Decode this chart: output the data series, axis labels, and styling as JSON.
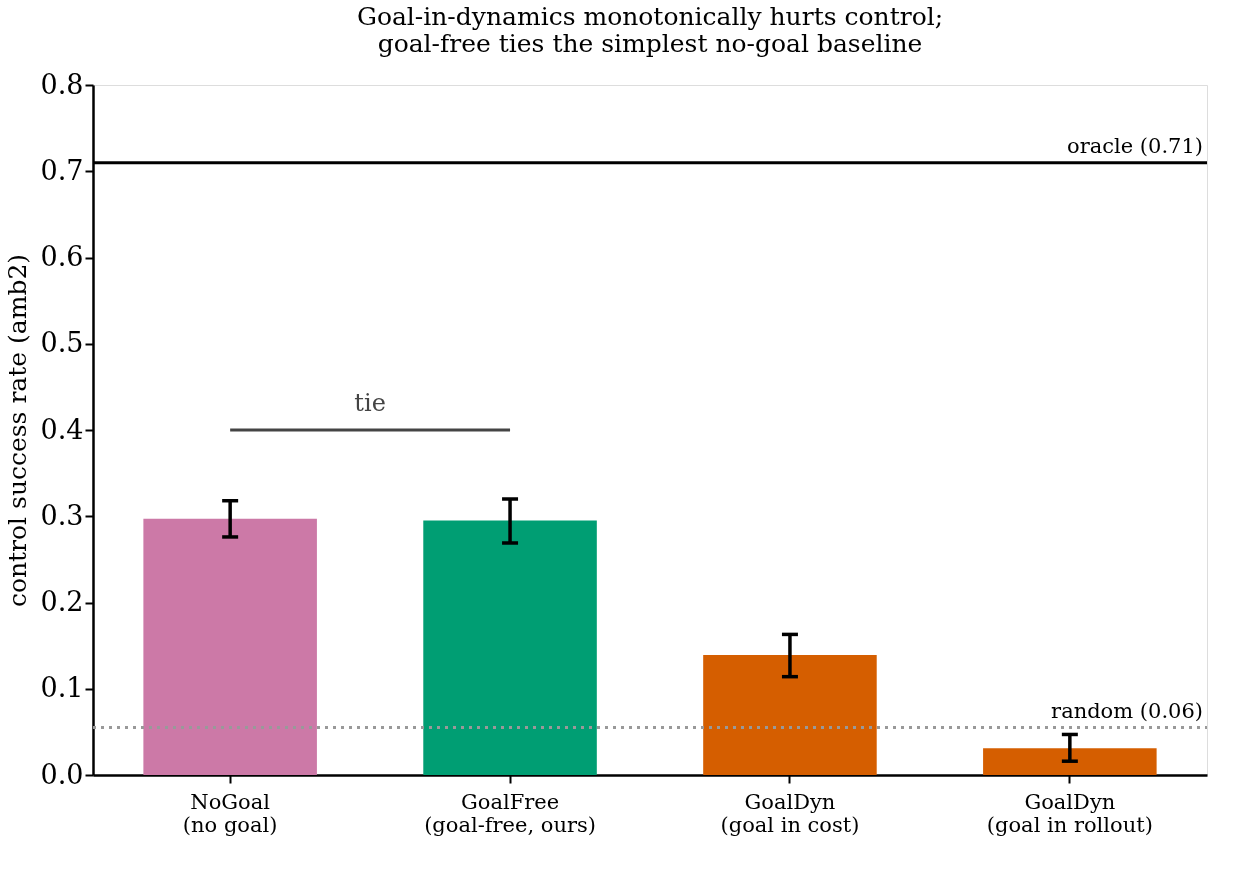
{
  "chart_data": {
    "type": "bar",
    "title": "Goal-in-dynamics monotonically hurts control;\ngoal-free ties the simplest no-goal baseline",
    "ylabel": "control success rate (amb2)",
    "categories": [
      "NoGoal\n(no goal)",
      "GoalFree\n(goal-free, ours)",
      "GoalDyn\n(goal in cost)",
      "GoalDyn\n(goal in rollout)"
    ],
    "values": [
      0.297,
      0.295,
      0.139,
      0.031
    ],
    "colors": [
      "#cc79a7",
      "#009e73",
      "#d55e00",
      "#d55e00"
    ],
    "errors": [
      [
        0.276,
        0.318
      ],
      [
        0.269,
        0.32
      ],
      [
        0.114,
        0.163
      ],
      [
        0.016,
        0.047
      ]
    ],
    "ylim": [
      0,
      0.8
    ],
    "yticks": [
      {
        "value": 0,
        "label": "0.0"
      },
      0.1,
      0.2,
      0.3,
      0.4,
      0.5,
      0.6,
      0.7,
      0.8
    ],
    "ref_lines": [
      {
        "axis": "y",
        "value": 0.71,
        "label": "oracle (0.71)",
        "color": "#000000",
        "line_style": "solid"
      },
      {
        "axis": "y",
        "value": 0.055,
        "label": "random (0.06)",
        "color": "#999999",
        "line_style": "dotted"
      }
    ],
    "annotations": [
      "tie"
    ],
    "grid": false
  }
}
